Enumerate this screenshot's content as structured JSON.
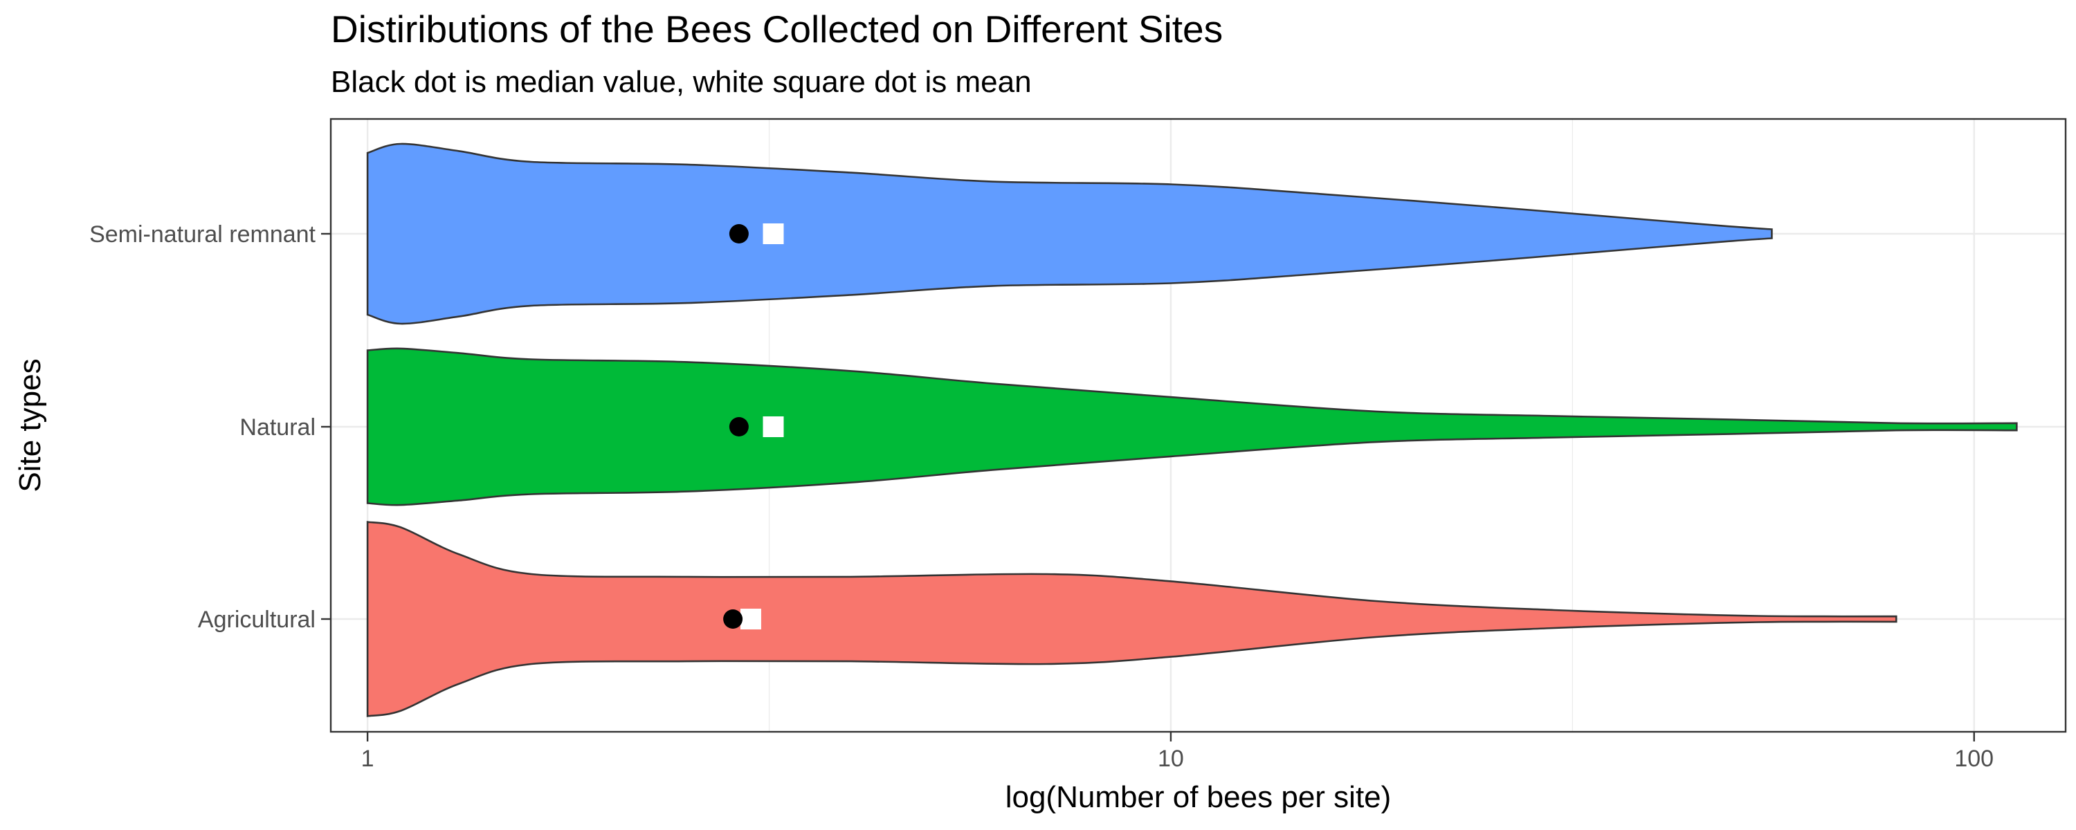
{
  "chart_data": {
    "type": "violin",
    "orientation": "horizontal",
    "title": "Distiributions of the Bees Collected on Different Sites",
    "subtitle": "Black dot is median value, white square dot is mean",
    "xlabel": "log(Number of bees per site)",
    "ylabel": "Site types",
    "x_scale": "log10",
    "xlim": [
      0.9,
      130
    ],
    "x_ticks": [
      1,
      10,
      100
    ],
    "x_tick_labels": [
      "1",
      "10",
      "100"
    ],
    "grid": true,
    "categories": [
      "Semi-natural remnant",
      "Natural",
      "Agricultural"
    ],
    "series": [
      {
        "name": "Semi-natural remnant",
        "color": "#619CFF",
        "median": 2.9,
        "mean": 3.2,
        "min": 1,
        "max": 56,
        "profile": [
          [
            1,
            0.9
          ],
          [
            1.1,
            1.0
          ],
          [
            1.3,
            0.92
          ],
          [
            1.6,
            0.8
          ],
          [
            2.5,
            0.77
          ],
          [
            4,
            0.68
          ],
          [
            6,
            0.58
          ],
          [
            10,
            0.55
          ],
          [
            15,
            0.45
          ],
          [
            25,
            0.3
          ],
          [
            40,
            0.15
          ],
          [
            50,
            0.08
          ],
          [
            56,
            0.05
          ]
        ]
      },
      {
        "name": "Natural",
        "color": "#00BA38",
        "median": 2.9,
        "mean": 3.2,
        "min": 1,
        "max": 113,
        "profile": [
          [
            1,
            0.85
          ],
          [
            1.1,
            0.87
          ],
          [
            1.3,
            0.82
          ],
          [
            1.6,
            0.75
          ],
          [
            2.5,
            0.72
          ],
          [
            4,
            0.62
          ],
          [
            6,
            0.48
          ],
          [
            10,
            0.33
          ],
          [
            18,
            0.17
          ],
          [
            30,
            0.12
          ],
          [
            50,
            0.08
          ],
          [
            80,
            0.04
          ],
          [
            113,
            0.04
          ]
        ]
      },
      {
        "name": "Agricultural",
        "color": "#F8766D",
        "median": 2.85,
        "mean": 3.0,
        "min": 1,
        "max": 80,
        "profile": [
          [
            1,
            1.08
          ],
          [
            1.1,
            1.02
          ],
          [
            1.3,
            0.72
          ],
          [
            1.6,
            0.5
          ],
          [
            2.5,
            0.47
          ],
          [
            4,
            0.47
          ],
          [
            7,
            0.5
          ],
          [
            10,
            0.42
          ],
          [
            18,
            0.2
          ],
          [
            30,
            0.1
          ],
          [
            50,
            0.04
          ],
          [
            65,
            0.03
          ],
          [
            80,
            0.03
          ]
        ]
      }
    ]
  }
}
